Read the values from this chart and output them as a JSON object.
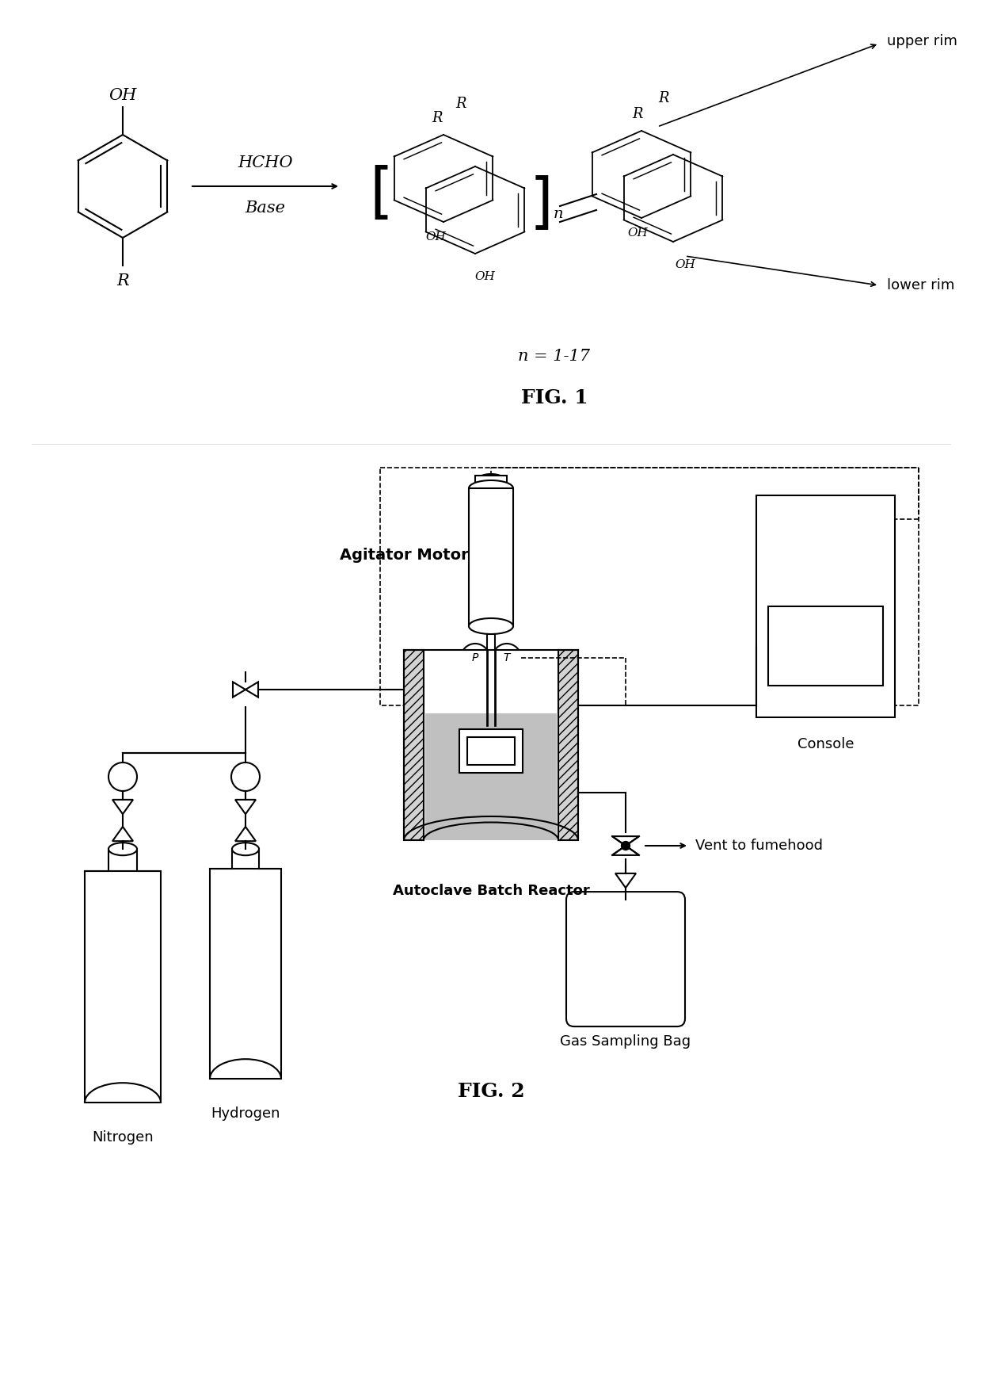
{
  "fig1_title": "FIG. 1",
  "fig2_title": "FIG. 2",
  "n_label": "n = 1-17",
  "upper_rim_label": "upper rim",
  "lower_rim_label": "lower rim",
  "hcho_label": "HCHO",
  "base_label": "Base",
  "agitator_motor_label": "Agitator Motor",
  "autoclave_label": "Autoclave Batch Reactor",
  "console_label": "Console",
  "vent_label": "Vent to fumehood",
  "gas_bag_label": "Gas Sampling Bag",
  "nitrogen_label": "Nitrogen",
  "hydrogen_label": "Hydrogen",
  "line_color": "#000000",
  "bg_color": "#ffffff"
}
